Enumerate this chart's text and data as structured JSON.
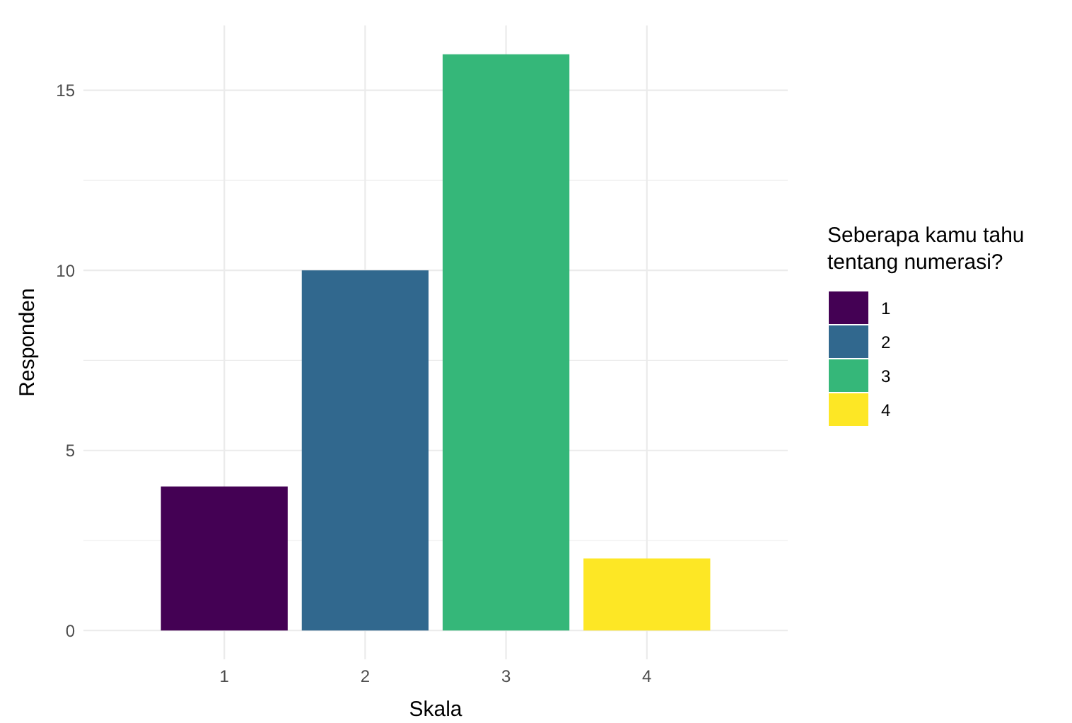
{
  "chart_data": {
    "type": "bar",
    "xlabel": "Skala",
    "ylabel": "Responden",
    "legend_title": "Seberapa kamu tahu\ntentang numerasi?",
    "categories": [
      "1",
      "2",
      "3",
      "4"
    ],
    "series": [
      {
        "name": "1",
        "color": "#440154",
        "values": [
          4,
          null,
          null,
          null
        ]
      },
      {
        "name": "2",
        "color": "#31688e",
        "values": [
          null,
          10,
          null,
          null
        ]
      },
      {
        "name": "3",
        "color": "#35b779",
        "values": [
          null,
          null,
          16,
          null
        ]
      },
      {
        "name": "4",
        "color": "#fde725",
        "values": [
          null,
          null,
          null,
          2
        ]
      }
    ],
    "ylim": [
      -0.8,
      16.8
    ],
    "yticks": [
      0,
      {
        "value": 2.5,
        "label": null
      },
      5,
      {
        "value": 7.5,
        "label": null
      },
      10,
      {
        "value": 12.5,
        "label": null
      },
      15
    ],
    "grid": true,
    "legend": "right"
  }
}
